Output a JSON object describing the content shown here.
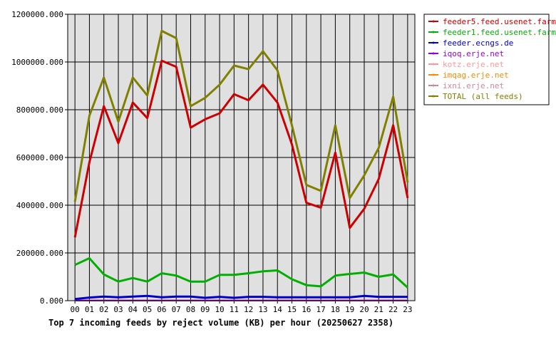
{
  "chart_data": {
    "type": "line",
    "caption": "Top 7 incoming feeds by reject volume (KB) per hour (20250627 2358)",
    "ylim": [
      0,
      1200000
    ],
    "y_ticks": [
      "0.000",
      "200000.000",
      "400000.000",
      "600000.000",
      "800000.000",
      "1000000.000",
      "1200000.000"
    ],
    "y_tick_values": [
      0,
      200000,
      400000,
      600000,
      800000,
      1000000,
      1200000
    ],
    "categories": [
      "00",
      "01",
      "02",
      "03",
      "04",
      "05",
      "06",
      "07",
      "08",
      "09",
      "10",
      "11",
      "12",
      "13",
      "14",
      "15",
      "16",
      "17",
      "18",
      "19",
      "20",
      "21",
      "22",
      "23"
    ],
    "grid": true,
    "legend_position": "right",
    "series": [
      {
        "name": "feeder5.feed.usenet.farm",
        "color": "#cc0000",
        "values": [
          265000,
          580000,
          815000,
          660000,
          830000,
          765000,
          1005000,
          980000,
          725000,
          760000,
          785000,
          865000,
          840000,
          905000,
          830000,
          655000,
          410000,
          390000,
          620000,
          305000,
          385000,
          510000,
          735000,
          430000
        ]
      },
      {
        "name": "feeder1.feed.usenet.farm",
        "color": "#00b000",
        "values": [
          150000,
          178000,
          110000,
          80000,
          95000,
          80000,
          115000,
          105000,
          80000,
          80000,
          108000,
          108000,
          115000,
          123000,
          127000,
          90000,
          65000,
          60000,
          105000,
          112000,
          118000,
          100000,
          110000,
          55000
        ]
      },
      {
        "name": "feeder.ecngs.de",
        "color": "#0000cc",
        "values": [
          7000,
          13000,
          17000,
          14000,
          17000,
          20000,
          14000,
          17000,
          17000,
          12000,
          16000,
          12000,
          16000,
          16000,
          14000,
          14000,
          14000,
          14000,
          14000,
          14000,
          20000,
          16000,
          16000,
          16000
        ]
      },
      {
        "name": "iqoq.erje.net",
        "color": "#9900cc",
        "values": [
          1000,
          1000,
          1000,
          1000,
          1000,
          1000,
          1000,
          1000,
          1000,
          1000,
          1000,
          1000,
          1000,
          1000,
          1000,
          1000,
          1000,
          1000,
          1000,
          1000,
          1000,
          1000,
          1000,
          1000
        ]
      },
      {
        "name": "kotz.erje.net",
        "color": "#ff9999",
        "values": [
          800,
          800,
          800,
          800,
          800,
          800,
          800,
          800,
          800,
          800,
          800,
          800,
          800,
          800,
          800,
          800,
          800,
          800,
          800,
          800,
          800,
          800,
          800,
          800
        ]
      },
      {
        "name": "imqag.erje.net",
        "color": "#ff8800",
        "values": [
          600,
          600,
          600,
          600,
          600,
          600,
          600,
          600,
          600,
          600,
          600,
          600,
          600,
          600,
          600,
          600,
          600,
          600,
          600,
          600,
          600,
          600,
          600,
          600
        ]
      },
      {
        "name": "ixni.erje.net",
        "color": "#cc8899",
        "values": [
          500,
          500,
          500,
          500,
          500,
          500,
          500,
          500,
          500,
          500,
          500,
          500,
          500,
          500,
          500,
          500,
          500,
          500,
          500,
          500,
          500,
          500,
          500,
          500
        ]
      },
      {
        "name": "TOTAL (all feeds)",
        "color": "#808000",
        "values": [
          415000,
          775000,
          935000,
          750000,
          935000,
          860000,
          1130000,
          1100000,
          815000,
          850000,
          905000,
          985000,
          970000,
          1045000,
          965000,
          735000,
          485000,
          460000,
          735000,
          430000,
          525000,
          640000,
          855000,
          495000
        ]
      }
    ]
  }
}
